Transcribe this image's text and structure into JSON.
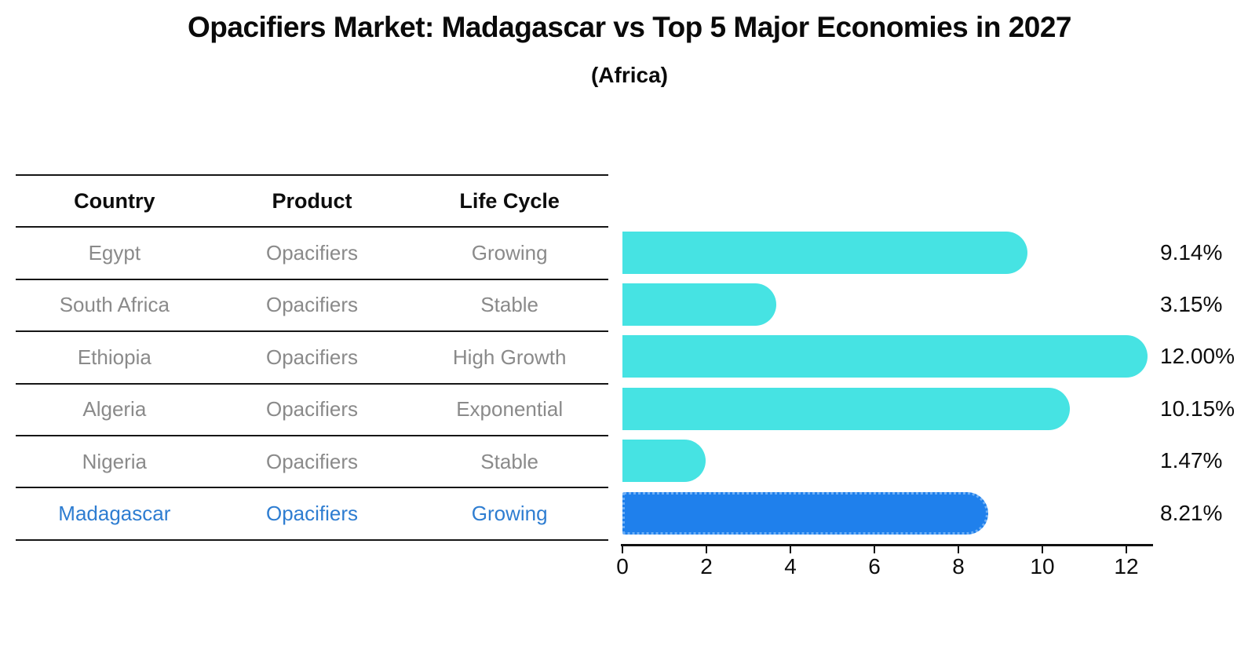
{
  "header": {
    "title": "Opacifiers Market: Madagascar vs Top 5 Major Economies in 2027",
    "subtitle": "(Africa)"
  },
  "table": {
    "headers": [
      "Country",
      "Product",
      "Life Cycle"
    ],
    "rows": [
      {
        "country": "Egypt",
        "product": "Opacifiers",
        "life_cycle": "Growing",
        "highlight": false
      },
      {
        "country": "South Africa",
        "product": "Opacifiers",
        "life_cycle": "Stable",
        "highlight": false
      },
      {
        "country": "Ethiopia",
        "product": "Opacifiers",
        "life_cycle": "High Growth",
        "highlight": false
      },
      {
        "country": "Algeria",
        "product": "Opacifiers",
        "life_cycle": "Exponential",
        "highlight": false
      },
      {
        "country": "Nigeria",
        "product": "Opacifiers",
        "life_cycle": "Stable",
        "highlight": false
      },
      {
        "country": "Madagascar",
        "product": "Opacifiers",
        "life_cycle": "Growing",
        "highlight": true
      }
    ]
  },
  "chart_data": {
    "type": "bar",
    "orientation": "horizontal",
    "title": "Opacifiers Market: Madagascar vs Top 5 Major Economies in 2027",
    "subtitle": "(Africa)",
    "categories": [
      "Egypt",
      "South Africa",
      "Ethiopia",
      "Algeria",
      "Nigeria",
      "Madagascar"
    ],
    "values": [
      9.14,
      3.15,
      12.0,
      10.15,
      1.47,
      8.21
    ],
    "value_labels": [
      "9.14%",
      "3.15%",
      "12.00%",
      "10.15%",
      "1.47%",
      "8.21%"
    ],
    "xlabel": "",
    "ylabel": "",
    "xlim": [
      0,
      12.62
    ],
    "xticks": [
      0,
      2,
      4,
      6,
      8,
      10,
      12
    ],
    "grid": false,
    "legend": false,
    "highlight_index": 5
  },
  "colors": {
    "bar": "#46e3e3",
    "highlight_bar": "#1f80ec",
    "highlight_border": "#6fb0f6",
    "highlight_text": "#2e7dd1",
    "row_text": "#8a8a8a",
    "header_text": "#0d0d0d",
    "axis": "#111111"
  }
}
